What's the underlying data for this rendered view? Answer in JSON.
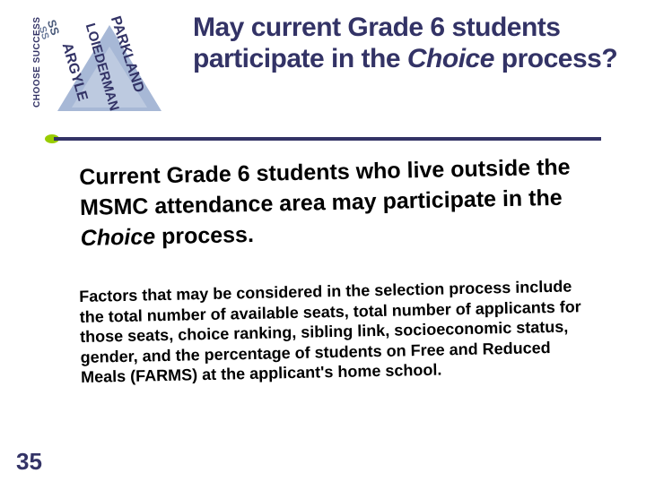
{
  "colors": {
    "heading": "#333366",
    "accent": "#99cc00",
    "body": "#000000",
    "triangle": "#a7b8d6",
    "background": "#ffffff"
  },
  "logo": {
    "side_text": "CHOOSE SUCCESS",
    "line1": "PARKLAND",
    "line2": "LOIEDERMAN",
    "line3": "ARGYLE",
    "ghost1": "SS",
    "ghost2": "SS"
  },
  "title": {
    "part1": "May current Grade 6 students participate in the ",
    "italic": "Choice",
    "part2": " process?"
  },
  "paragraph1": {
    "part1": "Current Grade 6 students who live outside the MSMC attendance area may participate in the ",
    "italic": "Choice",
    "part2": " process."
  },
  "paragraph2": "Factors that may be considered in the selection process include the total number of available seats, total number of applicants for those seats, choice ranking, sibling link, socioeconomic status, gender, and the percentage of students on Free and Reduced Meals (FARMS) at the applicant's home school.",
  "page_number": "35"
}
